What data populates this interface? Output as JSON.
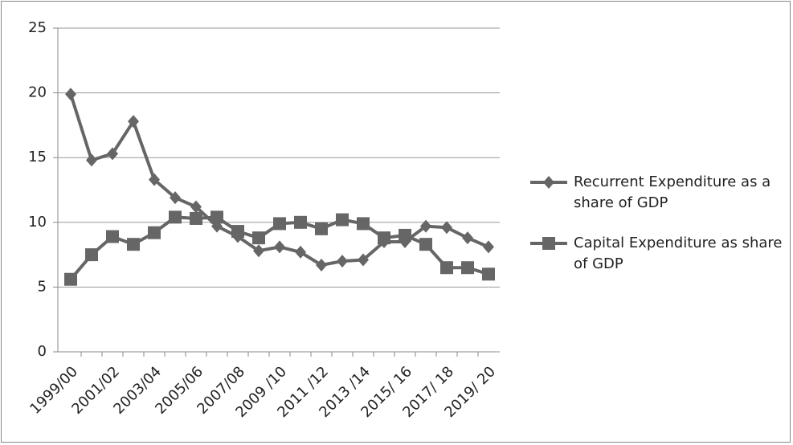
{
  "chart_data": {
    "type": "line",
    "categories": [
      "1999/00",
      null,
      "2001/02",
      null,
      "2003/04",
      null,
      "2005/06",
      null,
      "2007/08",
      null,
      "2009 /10",
      null,
      "2011 /12",
      null,
      "2013 /14",
      null,
      "2015/ 16",
      null,
      "2017/ 18",
      null,
      "2019/ 20"
    ],
    "series": [
      {
        "name": "Recurrent Expenditure as a share of GDP",
        "color": "#666666",
        "marker": "diamond",
        "values": [
          19.9,
          14.8,
          15.3,
          17.8,
          13.3,
          11.9,
          11.2,
          9.7,
          8.9,
          7.8,
          8.1,
          7.7,
          6.7,
          7.0,
          7.1,
          8.5,
          8.5,
          9.7,
          9.6,
          8.8,
          8.1
        ]
      },
      {
        "name": "Capital Expenditure as share of GDP",
        "color": "#666666",
        "marker": "square",
        "values": [
          5.6,
          7.5,
          8.9,
          8.3,
          9.2,
          10.4,
          10.3,
          10.4,
          9.3,
          8.8,
          9.9,
          10.0,
          9.5,
          10.2,
          9.9,
          8.8,
          9.0,
          8.3,
          6.5,
          6.5,
          6.0
        ]
      }
    ],
    "ylim": [
      0,
      25
    ],
    "yticks": [
      0,
      5,
      10,
      15,
      20,
      25
    ],
    "grid": true,
    "legend": "right"
  }
}
